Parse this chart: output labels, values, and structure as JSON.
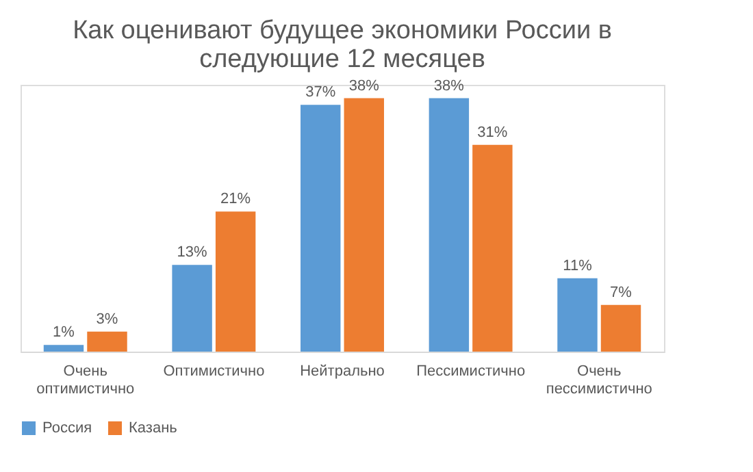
{
  "chart_data": {
    "type": "bar",
    "title": "Как оценивают будущее экономики России в следующие 12 месяцев",
    "categories": [
      "Очень оптимистично",
      "Оптимистично",
      "Нейтрально",
      "Пессимистично",
      "Очень пессимистично"
    ],
    "series": [
      {
        "name": "Россия",
        "color": "#5b9bd5",
        "values": [
          1,
          13,
          37,
          38,
          11
        ],
        "value_labels": [
          "1%",
          "13%",
          "37%",
          "38%",
          "11%"
        ]
      },
      {
        "name": "Казань",
        "color": "#ed7d31",
        "values": [
          3,
          21,
          38,
          31,
          7
        ],
        "value_labels": [
          "3%",
          "21%",
          "38%",
          "31%",
          "7%"
        ]
      }
    ],
    "legend": "bottom",
    "grid": false
  }
}
